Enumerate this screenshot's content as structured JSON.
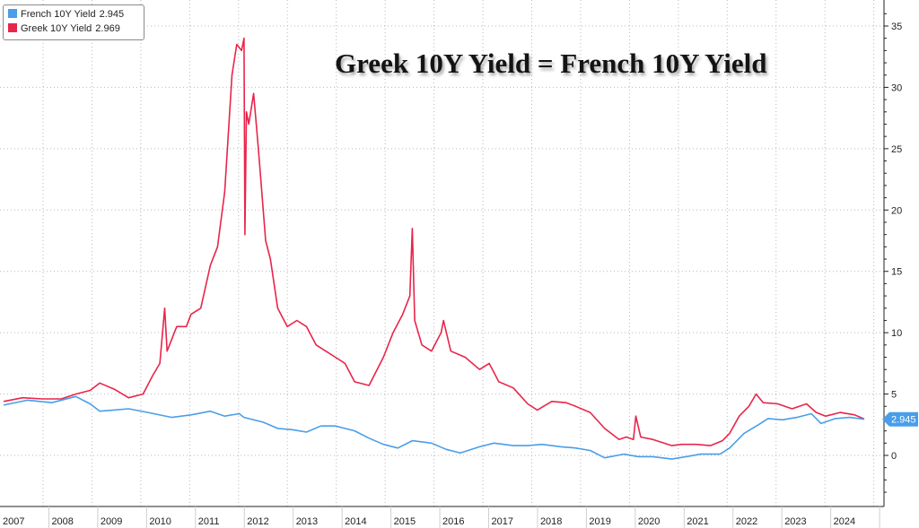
{
  "headline": "Greek 10Y Yield = French 10Y Yield",
  "legend": [
    {
      "label": "French 10Y Yield",
      "value": "2.945",
      "color": "#4a9ee8"
    },
    {
      "label": "Greek 10Y Yield",
      "value": "2.969",
      "color": "#e8254a"
    }
  ],
  "last_value_tag": "2.945",
  "chart_data": {
    "type": "line",
    "x_axis": {
      "labels": [
        "2007",
        "2008",
        "2009",
        "2010",
        "2011",
        "2012",
        "2013",
        "2014",
        "2015",
        "2016",
        "2017",
        "2018",
        "2019",
        "2020",
        "2021",
        "2022",
        "2023",
        "2024"
      ]
    },
    "y_axis": {
      "ticks": [
        0,
        5,
        10,
        15,
        20,
        25,
        30,
        35
      ],
      "range": [
        -4,
        37
      ],
      "position": "right"
    },
    "grid": true,
    "legend_position": "top-left",
    "series": [
      {
        "name": "French 10Y Yield",
        "color": "#4a9ee8",
        "points": [
          [
            2007.0,
            4.1
          ],
          [
            2007.5,
            4.5
          ],
          [
            2008.0,
            4.3
          ],
          [
            2008.5,
            4.8
          ],
          [
            2008.8,
            4.2
          ],
          [
            2009.0,
            3.6
          ],
          [
            2009.3,
            3.7
          ],
          [
            2009.6,
            3.8
          ],
          [
            2010.0,
            3.5
          ],
          [
            2010.5,
            3.1
          ],
          [
            2010.9,
            3.3
          ],
          [
            2011.3,
            3.6
          ],
          [
            2011.6,
            3.2
          ],
          [
            2011.9,
            3.4
          ],
          [
            2012.0,
            3.1
          ],
          [
            2012.4,
            2.7
          ],
          [
            2012.7,
            2.2
          ],
          [
            2013.0,
            2.1
          ],
          [
            2013.3,
            1.9
          ],
          [
            2013.6,
            2.4
          ],
          [
            2013.9,
            2.4
          ],
          [
            2014.3,
            2.0
          ],
          [
            2014.6,
            1.4
          ],
          [
            2014.9,
            0.9
          ],
          [
            2015.2,
            0.6
          ],
          [
            2015.5,
            1.2
          ],
          [
            2015.9,
            1.0
          ],
          [
            2016.2,
            0.5
          ],
          [
            2016.5,
            0.2
          ],
          [
            2016.9,
            0.7
          ],
          [
            2017.2,
            1.0
          ],
          [
            2017.6,
            0.8
          ],
          [
            2017.9,
            0.8
          ],
          [
            2018.2,
            0.9
          ],
          [
            2018.6,
            0.7
          ],
          [
            2018.9,
            0.6
          ],
          [
            2019.2,
            0.4
          ],
          [
            2019.5,
            -0.2
          ],
          [
            2019.9,
            0.1
          ],
          [
            2020.2,
            -0.1
          ],
          [
            2020.5,
            -0.1
          ],
          [
            2020.9,
            -0.3
          ],
          [
            2021.2,
            -0.1
          ],
          [
            2021.5,
            0.1
          ],
          [
            2021.9,
            0.1
          ],
          [
            2022.1,
            0.6
          ],
          [
            2022.4,
            1.8
          ],
          [
            2022.7,
            2.5
          ],
          [
            2022.9,
            3.0
          ],
          [
            2023.2,
            2.9
          ],
          [
            2023.5,
            3.1
          ],
          [
            2023.8,
            3.4
          ],
          [
            2024.0,
            2.6
          ],
          [
            2024.3,
            3.0
          ],
          [
            2024.6,
            3.1
          ],
          [
            2024.9,
            2.945
          ]
        ]
      },
      {
        "name": "Greek 10Y Yield",
        "color": "#e8254a",
        "points": [
          [
            2007.0,
            4.4
          ],
          [
            2007.4,
            4.7
          ],
          [
            2007.8,
            4.6
          ],
          [
            2008.2,
            4.6
          ],
          [
            2008.5,
            5.0
          ],
          [
            2008.8,
            5.3
          ],
          [
            2009.0,
            5.9
          ],
          [
            2009.3,
            5.4
          ],
          [
            2009.6,
            4.7
          ],
          [
            2009.9,
            5.0
          ],
          [
            2010.1,
            6.5
          ],
          [
            2010.25,
            7.5
          ],
          [
            2010.35,
            12.0
          ],
          [
            2010.4,
            8.5
          ],
          [
            2010.6,
            10.5
          ],
          [
            2010.8,
            10.5
          ],
          [
            2010.9,
            11.5
          ],
          [
            2011.1,
            12.0
          ],
          [
            2011.3,
            15.5
          ],
          [
            2011.45,
            17.0
          ],
          [
            2011.6,
            21.5
          ],
          [
            2011.75,
            31.0
          ],
          [
            2011.85,
            33.5
          ],
          [
            2011.95,
            33.0
          ],
          [
            2012.0,
            34.0
          ],
          [
            2012.02,
            18.0
          ],
          [
            2012.05,
            28.0
          ],
          [
            2012.1,
            27.0
          ],
          [
            2012.2,
            29.5
          ],
          [
            2012.3,
            25.0
          ],
          [
            2012.45,
            17.5
          ],
          [
            2012.55,
            16.0
          ],
          [
            2012.7,
            12.0
          ],
          [
            2012.9,
            10.5
          ],
          [
            2013.1,
            11.0
          ],
          [
            2013.3,
            10.5
          ],
          [
            2013.5,
            9.0
          ],
          [
            2013.7,
            8.5
          ],
          [
            2013.9,
            8.0
          ],
          [
            2014.1,
            7.5
          ],
          [
            2014.3,
            6.0
          ],
          [
            2014.6,
            5.7
          ],
          [
            2014.9,
            8.0
          ],
          [
            2015.1,
            10.0
          ],
          [
            2015.3,
            11.5
          ],
          [
            2015.45,
            13.0
          ],
          [
            2015.5,
            18.5
          ],
          [
            2015.55,
            11.0
          ],
          [
            2015.7,
            9.0
          ],
          [
            2015.9,
            8.5
          ],
          [
            2016.1,
            10.0
          ],
          [
            2016.15,
            11.0
          ],
          [
            2016.3,
            8.5
          ],
          [
            2016.6,
            8.0
          ],
          [
            2016.9,
            7.0
          ],
          [
            2017.1,
            7.5
          ],
          [
            2017.3,
            6.0
          ],
          [
            2017.6,
            5.5
          ],
          [
            2017.9,
            4.2
          ],
          [
            2018.1,
            3.7
          ],
          [
            2018.4,
            4.4
          ],
          [
            2018.7,
            4.3
          ],
          [
            2018.9,
            4.0
          ],
          [
            2019.2,
            3.5
          ],
          [
            2019.5,
            2.2
          ],
          [
            2019.8,
            1.3
          ],
          [
            2019.95,
            1.5
          ],
          [
            2020.1,
            1.3
          ],
          [
            2020.15,
            3.2
          ],
          [
            2020.25,
            1.5
          ],
          [
            2020.5,
            1.3
          ],
          [
            2020.9,
            0.8
          ],
          [
            2021.1,
            0.9
          ],
          [
            2021.4,
            0.9
          ],
          [
            2021.7,
            0.8
          ],
          [
            2021.95,
            1.2
          ],
          [
            2022.1,
            1.8
          ],
          [
            2022.3,
            3.2
          ],
          [
            2022.5,
            4.0
          ],
          [
            2022.65,
            5.0
          ],
          [
            2022.8,
            4.3
          ],
          [
            2023.1,
            4.2
          ],
          [
            2023.4,
            3.8
          ],
          [
            2023.7,
            4.2
          ],
          [
            2023.9,
            3.5
          ],
          [
            2024.1,
            3.2
          ],
          [
            2024.4,
            3.5
          ],
          [
            2024.7,
            3.3
          ],
          [
            2024.9,
            2.969
          ]
        ]
      }
    ]
  }
}
